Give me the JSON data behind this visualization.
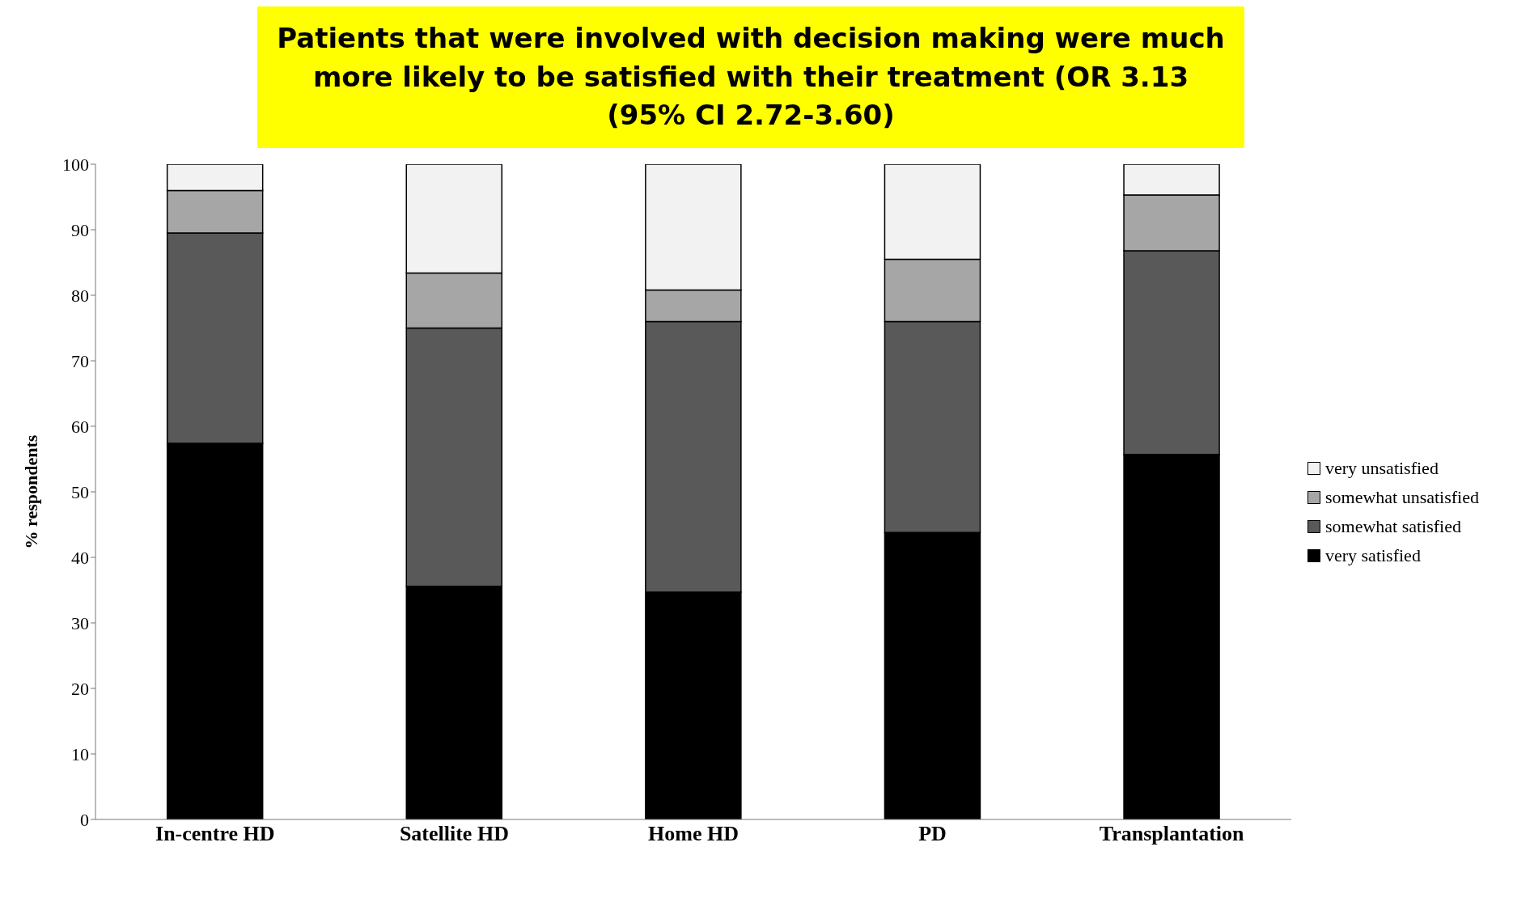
{
  "chart_data": {
    "type": "bar",
    "stacked": true,
    "ylabel": "% respondents",
    "annotations": [
      "Patients that were involved with decision making were much more likely to be satisfied with their treatment (OR 3.13 (95% CI 2.72-3.60)"
    ],
    "categories": [
      "In-centre HD",
      "Satellite HD",
      "Home HD",
      "PD",
      "Transplantation"
    ],
    "series": [
      {
        "name": "very satisfied",
        "color": "#000000",
        "values": [
          57.4,
          35.6,
          34.7,
          43.8,
          55.7
        ]
      },
      {
        "name": "somewhat satisfied",
        "color": "#595959",
        "values": [
          32.1,
          39.4,
          41.3,
          32.2,
          31.1
        ]
      },
      {
        "name": "somewhat unsatisfied",
        "color": "#a6a6a6",
        "values": [
          6.5,
          8.4,
          4.8,
          9.5,
          8.5
        ]
      },
      {
        "name": "very unsatisfied",
        "color": "#f2f2f2",
        "values": [
          4.0,
          16.6,
          19.2,
          14.5,
          4.7
        ]
      }
    ],
    "ylim": [
      0,
      100
    ],
    "yticks": [
      0,
      10,
      20,
      30,
      40,
      50,
      60,
      70,
      80,
      90,
      100
    ],
    "grid": false,
    "legend": "right"
  }
}
